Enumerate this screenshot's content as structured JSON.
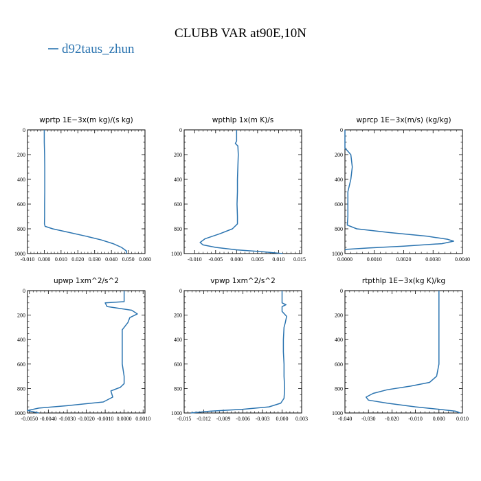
{
  "figure": {
    "title": "CLUBB VAR at90E,10N",
    "legend_label": "d92taus_zhun",
    "series_color": "#2b74b0"
  },
  "chart_data": [
    {
      "type": "line",
      "title": "wprtp  1E−3x(m kg)/(s kg)",
      "xlim": [
        -0.01,
        0.06
      ],
      "ylim": [
        1000,
        0
      ],
      "xticks": [
        "-0.010",
        "0.000",
        "0.010",
        "0.020",
        "0.030",
        "0.040",
        "0.050",
        "0.060"
      ],
      "yticks": [
        "0",
        "200",
        "400",
        "600",
        "800",
        "1000"
      ],
      "series": [
        {
          "name": "d92taus_zhun",
          "points": [
            [
              0.0,
              0
            ],
            [
              0.0,
              100
            ],
            [
              0.0002,
              200
            ],
            [
              0.0003,
              300
            ],
            [
              0.0003,
              400
            ],
            [
              0.0003,
              500
            ],
            [
              0.0002,
              600
            ],
            [
              0.0002,
              700
            ],
            [
              0.0001,
              760
            ],
            [
              0.0005,
              780
            ],
            [
              0.005,
              800
            ],
            [
              0.015,
              830
            ],
            [
              0.025,
              860
            ],
            [
              0.034,
              890
            ],
            [
              0.041,
              920
            ],
            [
              0.046,
              950
            ],
            [
              0.049,
              980
            ],
            [
              0.049,
              1000
            ]
          ]
        }
      ]
    },
    {
      "type": "line",
      "title": "wpthlp  1x(m K)/s",
      "xlim": [
        -0.0125,
        0.0155
      ],
      "ylim": [
        1000,
        0
      ],
      "xticks": [
        "-0.010",
        "-0.005",
        "0.000",
        "0.005",
        "0.010",
        "0.015"
      ],
      "yticks": [
        "0",
        "200",
        "400",
        "600",
        "800",
        "1000"
      ],
      "series": [
        {
          "name": "d92taus_zhun",
          "points": [
            [
              0.0,
              0
            ],
            [
              0.0,
              90
            ],
            [
              -0.0003,
              110
            ],
            [
              0.0003,
              130
            ],
            [
              0.0004,
              200
            ],
            [
              0.0003,
              300
            ],
            [
              0.0002,
              400
            ],
            [
              0.0002,
              500
            ],
            [
              0.0001,
              600
            ],
            [
              0.0002,
              700
            ],
            [
              0.0002,
              760
            ],
            [
              -0.001,
              800
            ],
            [
              -0.004,
              840
            ],
            [
              -0.0075,
              880
            ],
            [
              -0.0087,
              910
            ],
            [
              -0.008,
              930
            ],
            [
              -0.005,
              950
            ],
            [
              0.0,
              970
            ],
            [
              0.006,
              985
            ],
            [
              0.011,
              1000
            ]
          ]
        }
      ]
    },
    {
      "type": "line",
      "title": "wprcp  1E−3x(m/s) (kg/kg)",
      "xlim": [
        0.0,
        0.004
      ],
      "ylim": [
        1000,
        0
      ],
      "xticks": [
        "0.0000",
        "0.0010",
        "0.0020",
        "0.0030",
        "0.0040"
      ],
      "yticks": [
        "0",
        "200",
        "400",
        "600",
        "800",
        "1000"
      ],
      "series": [
        {
          "name": "d92taus_zhun",
          "points": [
            [
              0.0,
              0
            ],
            [
              0.0,
              150
            ],
            [
              5e-05,
              160
            ],
            [
              0.0002,
              200
            ],
            [
              0.00025,
              300
            ],
            [
              0.0002,
              400
            ],
            [
              0.00015,
              450
            ],
            [
              0.0001,
              500
            ],
            [
              0.0001,
              600
            ],
            [
              0.0001,
              700
            ],
            [
              8e-05,
              770
            ],
            [
              0.0004,
              800
            ],
            [
              0.0015,
              830
            ],
            [
              0.0028,
              860
            ],
            [
              0.0035,
              885
            ],
            [
              0.0037,
              900
            ],
            [
              0.0033,
              920
            ],
            [
              0.002,
              940
            ],
            [
              0.0008,
              955
            ],
            [
              0.0001,
              965
            ],
            [
              0.0,
              970
            ]
          ]
        }
      ]
    },
    {
      "type": "line",
      "title": "upwp  1xm^2/s^2",
      "xlim": [
        -0.0051,
        0.0011
      ],
      "ylim": [
        1000,
        0
      ],
      "xticks": [
        "-0.0050",
        "-0.0040",
        "-0.0030",
        "-0.0020",
        "-0.0010",
        "0.0000",
        "0.0010"
      ],
      "yticks": [
        "0",
        "200",
        "400",
        "600",
        "800",
        "1000"
      ],
      "series": [
        {
          "name": "d92taus_zhun",
          "points": [
            [
              0.0,
              0
            ],
            [
              0.0,
              90
            ],
            [
              -0.001,
              100
            ],
            [
              -0.0009,
              130
            ],
            [
              0.0004,
              160
            ],
            [
              0.0007,
              190
            ],
            [
              0.0003,
              220
            ],
            [
              0.0002,
              260
            ],
            [
              -0.0001,
              320
            ],
            [
              -0.0001,
              400
            ],
            [
              -0.0001,
              500
            ],
            [
              -0.0001,
              600
            ],
            [
              0.0,
              700
            ],
            [
              0.0,
              760
            ],
            [
              -0.0002,
              790
            ],
            [
              -0.0007,
              820
            ],
            [
              -0.0006,
              870
            ],
            [
              -0.0011,
              910
            ],
            [
              -0.003,
              940
            ],
            [
              -0.0045,
              960
            ],
            [
              -0.0051,
              980
            ],
            [
              -0.0045,
              1000
            ]
          ]
        }
      ]
    },
    {
      "type": "line",
      "title": "vpwp  1xm^2/s^2",
      "xlim": [
        -0.015,
        0.003
      ],
      "ylim": [
        1000,
        0
      ],
      "xticks": [
        "-0.015",
        "-0.012",
        "-0.009",
        "-0.006",
        "-0.003",
        "0.000",
        "0.003"
      ],
      "yticks": [
        "0",
        "200",
        "400",
        "600",
        "800",
        "1000"
      ],
      "series": [
        {
          "name": "d92taus_zhun",
          "points": [
            [
              0.0,
              0
            ],
            [
              0.0,
              100
            ],
            [
              0.0006,
              115
            ],
            [
              0.0,
              130
            ],
            [
              0.0,
              170
            ],
            [
              0.0007,
              210
            ],
            [
              0.0005,
              260
            ],
            [
              0.0003,
              300
            ],
            [
              0.0002,
              400
            ],
            [
              0.0002,
              500
            ],
            [
              0.0003,
              600
            ],
            [
              0.0003,
              700
            ],
            [
              0.0004,
              800
            ],
            [
              0.0003,
              880
            ],
            [
              -0.0002,
              920
            ],
            [
              -0.002,
              950
            ],
            [
              -0.006,
              970
            ],
            [
              -0.011,
              985
            ],
            [
              -0.014,
              1000
            ]
          ]
        }
      ]
    },
    {
      "type": "line",
      "title": "rtpthlp  1E−3x(kg K)/kg",
      "xlim": [
        -0.04,
        0.01
      ],
      "ylim": [
        1000,
        0
      ],
      "xticks": [
        "-0.040",
        "-0.030",
        "-0.020",
        "-0.010",
        "0.000",
        "0.010"
      ],
      "yticks": [
        "0",
        "200",
        "400",
        "600",
        "800",
        "1000"
      ],
      "series": [
        {
          "name": "d92taus_zhun",
          "points": [
            [
              0.0,
              0
            ],
            [
              0.0,
              200
            ],
            [
              0.0,
              400
            ],
            [
              0.0,
              600
            ],
            [
              -0.001,
              700
            ],
            [
              -0.004,
              750
            ],
            [
              -0.012,
              780
            ],
            [
              -0.022,
              810
            ],
            [
              -0.028,
              840
            ],
            [
              -0.031,
              870
            ],
            [
              -0.03,
              895
            ],
            [
              -0.022,
              920
            ],
            [
              -0.01,
              950
            ],
            [
              0.0,
              970
            ],
            [
              0.007,
              985
            ],
            [
              0.009,
              1000
            ]
          ]
        }
      ]
    }
  ]
}
